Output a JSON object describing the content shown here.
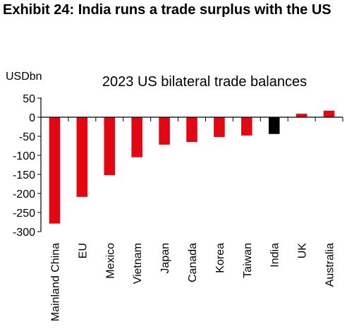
{
  "exhibit": {
    "title": "Exhibit 24: India runs a trade surplus with the US"
  },
  "chart_data": {
    "type": "bar",
    "title": "2023 US bilateral trade balances",
    "ylabel": "USDbn",
    "xlabel": "",
    "ylim": [
      -300,
      50
    ],
    "yticks": [
      50,
      0,
      -50,
      -100,
      -150,
      -200,
      -250,
      -300
    ],
    "grid": false,
    "categories": [
      "Mainland China",
      "EU",
      "Mexico",
      "Vietnam",
      "Japan",
      "Canada",
      "Korea",
      "Taiwan",
      "India",
      "UK",
      "Australia"
    ],
    "values": [
      -279,
      -209,
      -152,
      -105,
      -72,
      -65,
      -52,
      -48,
      -44,
      9,
      17
    ],
    "colors": {
      "default_bar": "#e30613",
      "highlight_bar": "#000000",
      "highlight_category": "India",
      "axis": "#000000"
    }
  }
}
